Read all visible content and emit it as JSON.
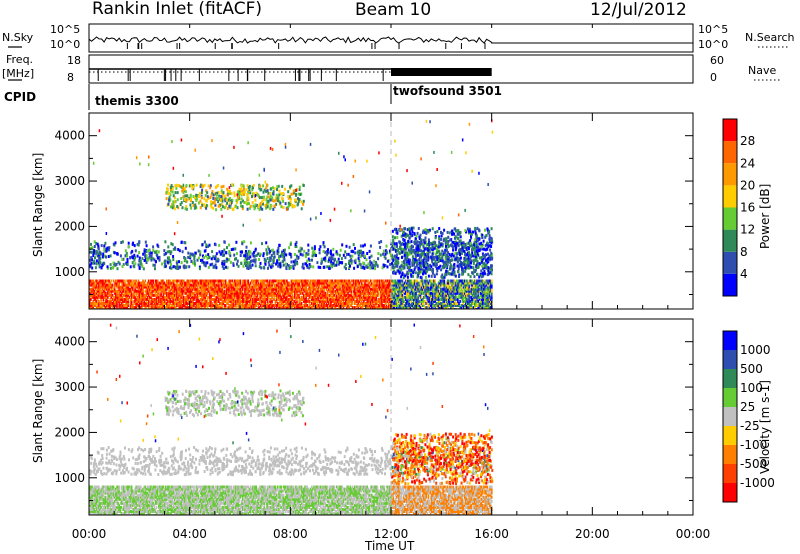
{
  "header": {
    "title": "Rankin Inlet (fitACF)",
    "beam": "Beam 10",
    "date": "12/Jul/2012"
  },
  "strip1": {
    "left_label": "N.Sky",
    "right_label": "N.Search",
    "ticks": [
      "10^5",
      "10^0"
    ]
  },
  "strip2": {
    "left_label_1": "Freq.",
    "left_label_2": "[MHz]",
    "right_label": "Nave",
    "left_ticks": [
      "18",
      "8"
    ],
    "right_ticks": [
      "60",
      "0"
    ]
  },
  "cpid": {
    "label": "CPID",
    "segments": [
      {
        "name": "themis 3300",
        "start_hour": 0.0
      },
      {
        "name": "twofsound 3501",
        "start_hour": 12.0
      }
    ]
  },
  "colors": {
    "power": [
      "#0000ff",
      "#2f4fb0",
      "#2e8b57",
      "#66cc33",
      "#ffcc00",
      "#ff9900",
      "#ff6600",
      "#ff0000"
    ],
    "velocity": [
      "#ff0000",
      "#ff4000",
      "#ff8000",
      "#ffcc00",
      "#c0c0c0",
      "#66cc33",
      "#2e8b57",
      "#2f4fb0",
      "#0000ff"
    ]
  },
  "chart_data": [
    {
      "type": "heatmap",
      "title": "",
      "xlabel": "Time UT",
      "ylabel": "Slant Range [km]",
      "xlim": [
        0,
        24
      ],
      "ylim": [
        180,
        4500
      ],
      "x_ticks": [
        "00:00",
        "04:00",
        "08:00",
        "12:00",
        "16:00",
        "20:00",
        "00:00"
      ],
      "y_ticks": [
        "1000",
        "2000",
        "3000",
        "4000"
      ],
      "colorbar": {
        "label": "Power [dB]",
        "range": [
          0,
          32
        ],
        "ticks": [
          "4",
          "8",
          "12",
          "16",
          "20",
          "24",
          "28"
        ]
      },
      "data_coverage_hours": [
        0,
        16
      ]
    },
    {
      "type": "heatmap",
      "title": "",
      "xlabel": "Time UT",
      "ylabel": "Slant Range [km]",
      "xlim": [
        0,
        24
      ],
      "ylim": [
        180,
        4500
      ],
      "x_ticks": [
        "00:00",
        "04:00",
        "08:00",
        "12:00",
        "16:00",
        "20:00",
        "00:00"
      ],
      "y_ticks": [
        "1000",
        "2000",
        "3000",
        "4000"
      ],
      "colorbar": {
        "label": "Velocity [m s-1]",
        "ticks": [
          "1000",
          "500",
          "100",
          "25",
          "-25",
          "-100",
          "-500",
          "-1000"
        ]
      },
      "data_coverage_hours": [
        0,
        16
      ]
    }
  ]
}
